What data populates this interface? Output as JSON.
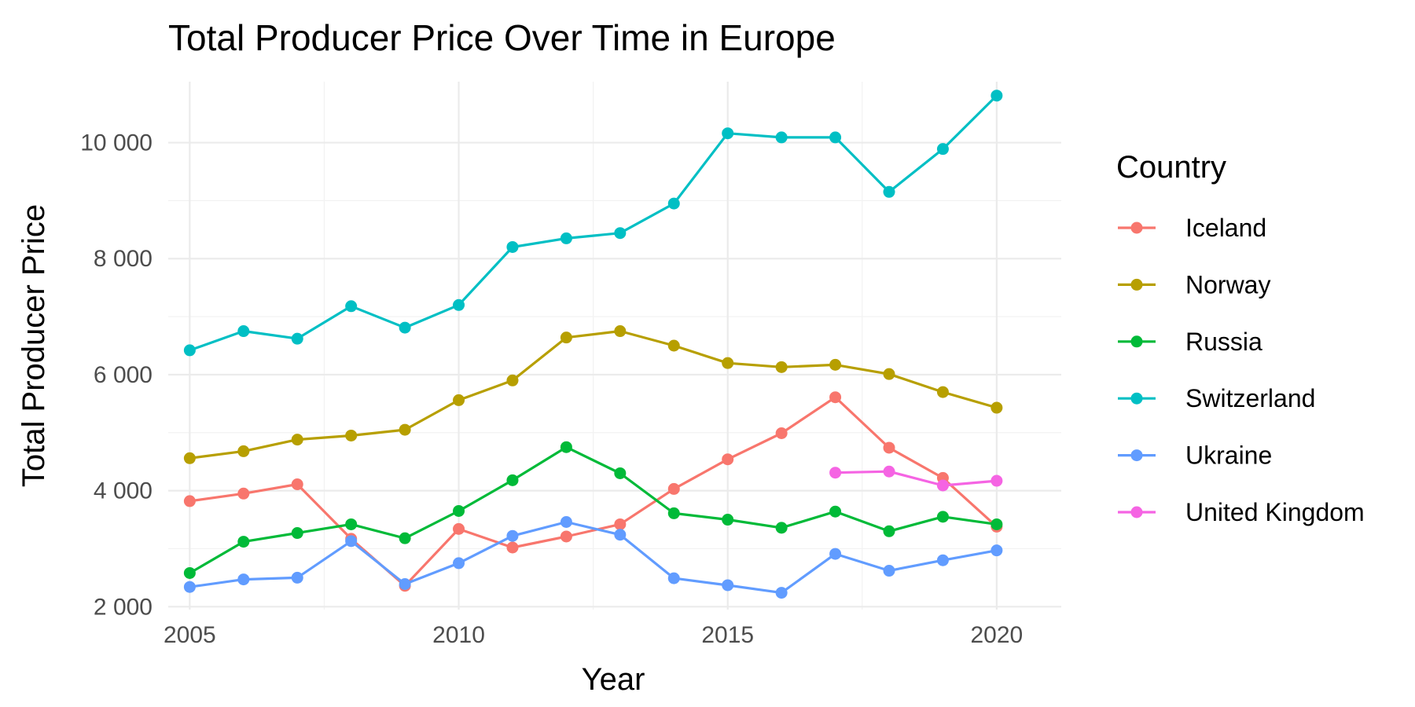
{
  "chart_data": {
    "type": "line",
    "title": "Total Producer Price Over Time in Europe",
    "xlabel": "Year",
    "ylabel": "Total Producer Price",
    "xlim": [
      2004.6,
      2021.2
    ],
    "ylim": [
      1950,
      11050
    ],
    "x_ticks": [
      2005,
      2010,
      2015,
      2020
    ],
    "x_tick_labels": [
      "2005",
      "2010",
      "2015",
      "2020"
    ],
    "y_ticks": [
      2000,
      4000,
      6000,
      8000,
      10000
    ],
    "y_tick_labels": [
      "2 000",
      "4 000",
      "6 000",
      "8 000",
      "10 000"
    ],
    "grid": true,
    "legend": {
      "title": "Country",
      "position": "right"
    },
    "series": [
      {
        "name": "Iceland",
        "color": "#F8766D",
        "x": [
          2005,
          2006,
          2007,
          2008,
          2009,
          2010,
          2011,
          2012,
          2013,
          2014,
          2015,
          2016,
          2017,
          2018,
          2019,
          2020
        ],
        "values": [
          3820,
          3950,
          4110,
          3170,
          2360,
          3340,
          3020,
          3210,
          3420,
          4030,
          4540,
          4990,
          5610,
          4740,
          4220,
          3380
        ]
      },
      {
        "name": "Norway",
        "color": "#B79F00",
        "x": [
          2005,
          2006,
          2007,
          2008,
          2009,
          2010,
          2011,
          2012,
          2013,
          2014,
          2015,
          2016,
          2017,
          2018,
          2019,
          2020
        ],
        "values": [
          4560,
          4680,
          4880,
          4950,
          5050,
          5560,
          5900,
          6640,
          6750,
          6500,
          6200,
          6130,
          6170,
          6010,
          5700,
          5430
        ]
      },
      {
        "name": "Russia",
        "color": "#00BA38",
        "x": [
          2005,
          2006,
          2007,
          2008,
          2009,
          2010,
          2011,
          2012,
          2013,
          2014,
          2015,
          2016,
          2017,
          2018,
          2019,
          2020
        ],
        "values": [
          2580,
          3120,
          3270,
          3420,
          3180,
          3650,
          4180,
          4750,
          4300,
          3610,
          3500,
          3360,
          3640,
          3300,
          3550,
          3420
        ]
      },
      {
        "name": "Switzerland",
        "color": "#00BFC4",
        "x": [
          2005,
          2006,
          2007,
          2008,
          2009,
          2010,
          2011,
          2012,
          2013,
          2014,
          2015,
          2016,
          2017,
          2018,
          2019,
          2020
        ],
        "values": [
          6420,
          6750,
          6620,
          7180,
          6810,
          7200,
          8200,
          8350,
          8440,
          8950,
          10160,
          10090,
          10090,
          9150,
          9890,
          10810
        ]
      },
      {
        "name": "Ukraine",
        "color": "#619CFF",
        "x": [
          2005,
          2006,
          2007,
          2008,
          2009,
          2010,
          2011,
          2012,
          2013,
          2014,
          2015,
          2016,
          2017,
          2018,
          2019,
          2020
        ],
        "values": [
          2340,
          2470,
          2500,
          3130,
          2390,
          2750,
          3220,
          3460,
          3240,
          2490,
          2370,
          2240,
          2910,
          2620,
          2800,
          2970
        ]
      },
      {
        "name": "United Kingdom",
        "color": "#F564E3",
        "x": [
          2017,
          2018,
          2019,
          2020
        ],
        "values": [
          4310,
          4330,
          4090,
          4170
        ]
      }
    ]
  }
}
